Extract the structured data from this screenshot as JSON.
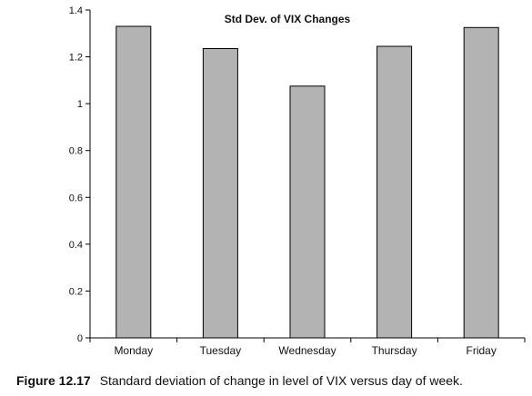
{
  "chart_data": {
    "type": "bar",
    "title": "Std Dev. of VIX Changes",
    "categories": [
      "Monday",
      "Tuesday",
      "Wednesday",
      "Thursday",
      "Friday"
    ],
    "values": [
      1.33,
      1.235,
      1.075,
      1.245,
      1.325
    ],
    "xlabel": "",
    "ylabel": "",
    "ylim": [
      0,
      1.4
    ],
    "yticks": [
      0,
      0.2,
      0.4,
      0.6,
      0.8,
      1,
      1.2,
      1.4
    ],
    "ytick_labels": [
      "0",
      "0.2",
      "0.4",
      "0.6",
      "0.8",
      "1",
      "1.2",
      "1.4"
    ],
    "grid": false,
    "legend": "none",
    "bar_color": "#b3b3b3",
    "bar_edge_color": "#000000"
  },
  "caption": {
    "figure_number": "Figure 12.17",
    "text": "Standard deviation of change in level of VIX versus day of week."
  }
}
